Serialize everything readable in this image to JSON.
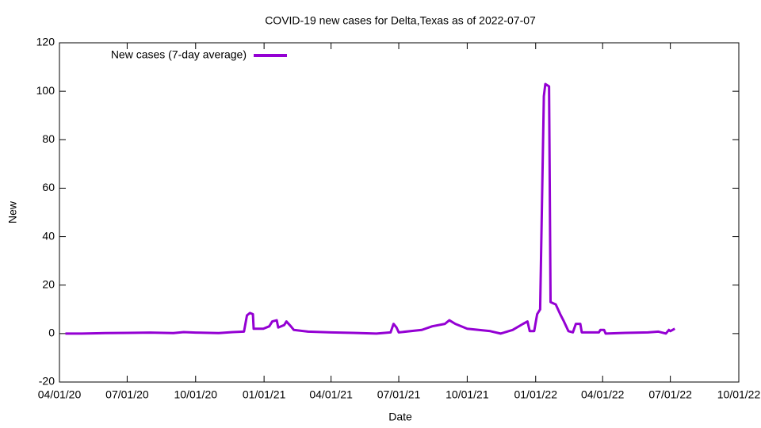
{
  "chart_data": {
    "type": "line",
    "title": "COVID-19 new cases for Delta,Texas as of 2022-07-07",
    "xlabel": "Date",
    "ylabel": "New",
    "legend": "top-left",
    "grid": false,
    "x": [
      "2020-04-09",
      "2020-05-01",
      "2020-06-01",
      "2020-07-01",
      "2020-08-01",
      "2020-09-01",
      "2020-09-15",
      "2020-10-01",
      "2020-11-01",
      "2020-11-20",
      "2020-12-05",
      "2020-12-09",
      "2020-12-13",
      "2020-12-17",
      "2020-12-18",
      "2020-12-31",
      "2021-01-08",
      "2021-01-12",
      "2021-01-18",
      "2021-01-20",
      "2021-01-28",
      "2021-01-31",
      "2021-02-06",
      "2021-02-10",
      "2021-03-01",
      "2021-04-01",
      "2021-05-01",
      "2021-06-01",
      "2021-06-20",
      "2021-06-24",
      "2021-06-28",
      "2021-07-01",
      "2021-08-01",
      "2021-08-15",
      "2021-09-01",
      "2021-09-07",
      "2021-09-15",
      "2021-10-01",
      "2021-11-01",
      "2021-11-15",
      "2021-12-01",
      "2021-12-15",
      "2021-12-21",
      "2021-12-24",
      "2021-12-30",
      "2022-01-03",
      "2022-01-07",
      "2022-01-12",
      "2022-01-14",
      "2022-01-19",
      "2022-01-21",
      "2022-01-28",
      "2022-02-03",
      "2022-02-08",
      "2022-02-14",
      "2022-02-20",
      "2022-02-24",
      "2022-03-02",
      "2022-03-04",
      "2022-03-27",
      "2022-03-29",
      "2022-04-03",
      "2022-04-05",
      "2022-05-01",
      "2022-06-01",
      "2022-06-15",
      "2022-06-25",
      "2022-06-29",
      "2022-07-01",
      "2022-07-07"
    ],
    "series": [
      {
        "name": "New cases (7-day average)",
        "color": "#9400d3",
        "values": [
          0,
          0,
          0.2,
          0.3,
          0.4,
          0.2,
          0.6,
          0.4,
          0.2,
          0.6,
          0.8,
          7.5,
          8.5,
          8,
          2,
          2,
          3,
          5,
          5.5,
          2.5,
          3.5,
          5,
          3,
          1.5,
          0.8,
          0.5,
          0.3,
          0,
          0.5,
          4,
          2.5,
          0.5,
          1.5,
          3,
          4,
          5.5,
          4,
          2,
          1,
          0,
          1.5,
          4,
          5,
          1,
          1,
          8,
          10,
          98,
          103,
          102,
          13,
          12,
          8,
          5,
          1,
          0.5,
          4,
          4,
          0.5,
          0.5,
          1.5,
          1.5,
          0,
          0.3,
          0.5,
          0.8,
          0,
          1.5,
          1,
          2
        ]
      }
    ],
    "xlim": [
      "2020-04-01",
      "2022-10-01"
    ],
    "xticks": [
      {
        "value": "2020-04-01",
        "label": "04/01/20"
      },
      {
        "value": "2020-07-01",
        "label": "07/01/20"
      },
      {
        "value": "2020-10-01",
        "label": "10/01/20"
      },
      {
        "value": "2021-01-01",
        "label": "01/01/21"
      },
      {
        "value": "2021-04-01",
        "label": "04/01/21"
      },
      {
        "value": "2021-07-01",
        "label": "07/01/21"
      },
      {
        "value": "2021-10-01",
        "label": "10/01/21"
      },
      {
        "value": "2022-01-01",
        "label": "01/01/22"
      },
      {
        "value": "2022-04-01",
        "label": "04/01/22"
      },
      {
        "value": "2022-07-01",
        "label": "07/01/22"
      },
      {
        "value": "2022-10-01",
        "label": "10/01/22"
      }
    ],
    "ylim": [
      -20,
      120
    ],
    "yticks": [
      -20,
      0,
      20,
      40,
      60,
      80,
      100,
      120
    ]
  }
}
